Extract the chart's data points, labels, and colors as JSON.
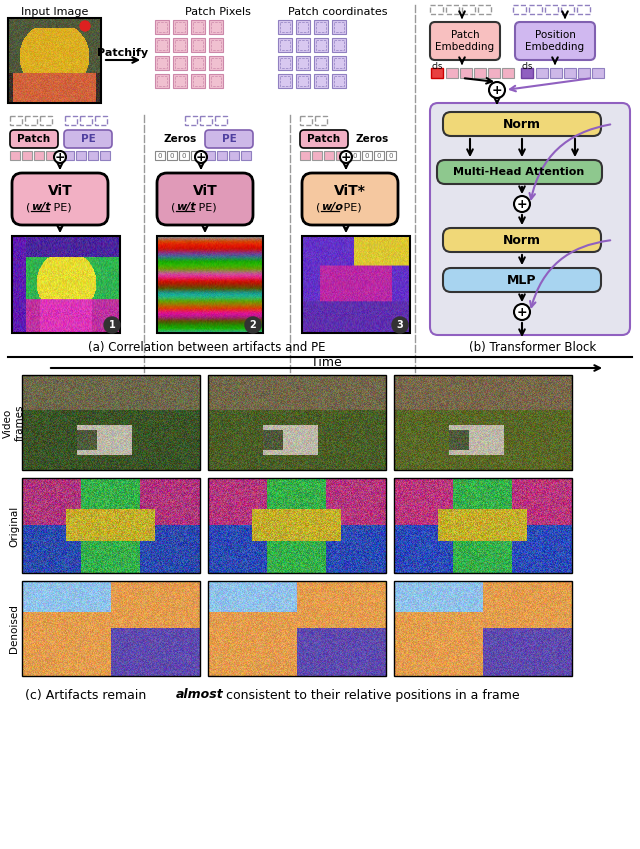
{
  "input_image_label": "Input Image",
  "patchify_label": "Patchify",
  "patch_pixels_label": "Patch Pixels",
  "patch_coords_label": "Patch coordinates",
  "col1_labels": [
    "Patch",
    "PE"
  ],
  "col2_labels": [
    "Zeros",
    "PE"
  ],
  "col3_labels": [
    "Patch",
    "Zeros"
  ],
  "vit1_label": "ViT",
  "vit1_sub1": "w/t",
  "vit1_sub2": " PE)",
  "vit2_label": "ViT",
  "vit2_sub1": "w/t",
  "vit2_sub2": " PE)",
  "vit3_label": "ViT*",
  "vit3_sub1": "w/o",
  "vit3_sub2": " PE)",
  "patch_emb_label": "Patch\nEmbedding",
  "pos_emb_label": "Position\nEmbedding",
  "norm_label": "Norm",
  "mha_label": "Multi-Head Attention",
  "norm2_label": "Norm",
  "mlp_label": "MLP",
  "caption_a": "(a) Correlation between artifacts and PE",
  "caption_b": "(b) Transformer Block",
  "caption_c1": "(c) Artifacts remain ",
  "caption_c2": "almost",
  "caption_c3": " consistent to their relative positions in a frame",
  "time_label": "Time",
  "row_label1": "Video\nframes",
  "row_label2": "Original",
  "row_label3": "Denoised",
  "colors": {
    "bg": "#ffffff",
    "vit1_bg": "#f2b0c4",
    "vit2_bg": "#e09ab8",
    "vit3_bg": "#f5c8a0",
    "patch_box_bg": "#f2b0c4",
    "pe_box_bg": "#cdb8e8",
    "norm_bg": "#f0d878",
    "mha_bg": "#8ec88e",
    "mlp_bg": "#a8d4f0",
    "transformer_bg": "#e4e4ee",
    "patch_emb_bg": "#f8c0c0",
    "pos_emb_bg": "#d0b8f0",
    "pink_token": "#f2b0c4",
    "purple_token": "#cdb8e8",
    "red_cls": "#e84040",
    "purple_cls": "#9060c0",
    "arrow_black": "#111111",
    "arrow_purple": "#9060c0",
    "dashed_gray": "#999999",
    "num_badge": "#333333"
  }
}
